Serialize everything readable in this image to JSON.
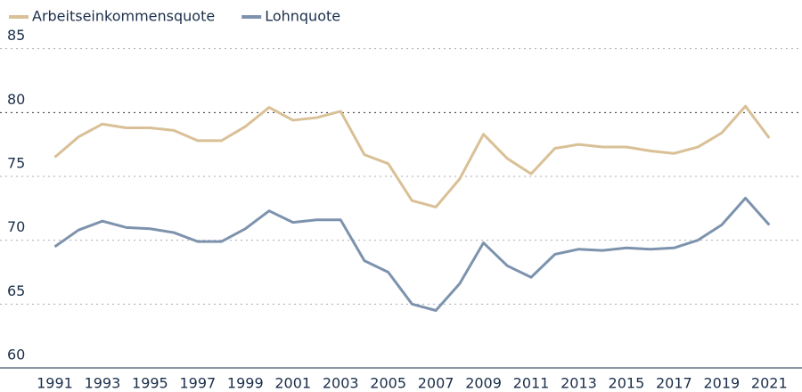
{
  "chart_data": {
    "type": "line",
    "x": [
      1991,
      1992,
      1993,
      1994,
      1995,
      1996,
      1997,
      1998,
      1999,
      2000,
      2001,
      2002,
      2003,
      2004,
      2005,
      2006,
      2007,
      2008,
      2009,
      2010,
      2011,
      2012,
      2013,
      2014,
      2015,
      2016,
      2017,
      2018,
      2019,
      2020,
      2021
    ],
    "series": [
      {
        "name": "Arbeitseinkommensquote",
        "color": "#d9c096",
        "values": [
          76.5,
          78.1,
          79.1,
          78.8,
          78.8,
          78.6,
          77.8,
          77.8,
          78.9,
          80.4,
          79.4,
          79.6,
          80.1,
          76.7,
          76.0,
          73.1,
          72.6,
          74.8,
          78.3,
          76.4,
          75.2,
          77.2,
          77.5,
          77.3,
          77.3,
          77.0,
          76.8,
          77.3,
          78.4,
          80.5,
          78.0
        ]
      },
      {
        "name": "Lohnquote",
        "color": "#7d93ad",
        "values": [
          69.5,
          70.8,
          71.5,
          71.0,
          70.9,
          70.6,
          69.9,
          69.9,
          70.9,
          72.3,
          71.4,
          71.6,
          71.6,
          68.4,
          67.5,
          65.0,
          64.5,
          66.6,
          69.8,
          68.0,
          67.1,
          68.9,
          69.3,
          69.2,
          69.4,
          69.3,
          69.4,
          70.0,
          71.2,
          73.3,
          71.2
        ]
      }
    ],
    "xlim": [
      1988.7,
      2022
    ],
    "xticks": [
      1991,
      1993,
      1995,
      1997,
      1999,
      2001,
      2003,
      2005,
      2007,
      2009,
      2011,
      2013,
      2015,
      2017,
      2019,
      2021
    ],
    "ylim": [
      60,
      87
    ],
    "yticks": [
      60,
      65,
      70,
      75,
      80,
      85
    ],
    "grid": true,
    "legend": "top-left"
  }
}
